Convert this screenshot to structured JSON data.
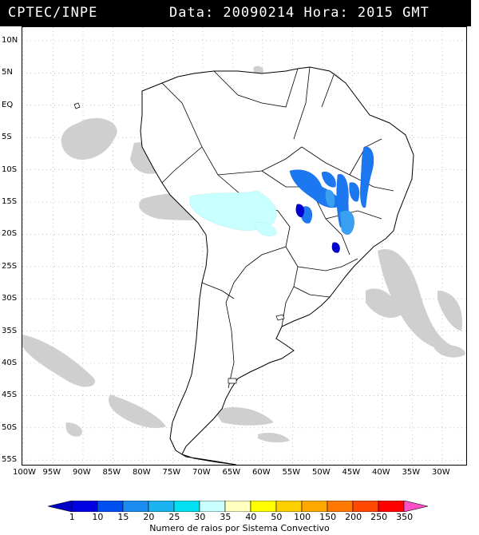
{
  "header": {
    "source": "CPTEC/INPE",
    "info": "Data: 20090214 Hora: 2015 GMT"
  },
  "map": {
    "type": "lightning density over South America",
    "lat_labels": [
      "10N",
      "5N",
      "EQ",
      "5S",
      "10S",
      "15S",
      "20S",
      "25S",
      "30S",
      "35S",
      "40S",
      "45S",
      "50S",
      "55S"
    ],
    "lon_labels": [
      "100W",
      "95W",
      "90W",
      "85W",
      "80W",
      "75W",
      "70W",
      "65W",
      "60W",
      "55W",
      "50W",
      "45W",
      "40W",
      "35W",
      "30W"
    ],
    "land_color": "#ffffff",
    "cloud_color": "#c8c8c8",
    "border_color": "#000000"
  },
  "legend": {
    "title": "Numero de raios por Sistema Convectivo",
    "labels": [
      "1",
      "10",
      "15",
      "20",
      "25",
      "30",
      "35",
      "40",
      "50",
      "100",
      "150",
      "200",
      "250",
      "350"
    ],
    "colors": [
      "#0000e0",
      "#0050f0",
      "#1c8cf0",
      "#1cb4f0",
      "#00e0f0",
      "#c8ffff",
      "#ffffc0",
      "#ffff00",
      "#ffd000",
      "#ffa800",
      "#ff7800",
      "#ff4800",
      "#ff0000",
      "#ff60c0"
    ],
    "arrow_left_color": "#0000c8",
    "arrow_right_color": "#ff50c8"
  }
}
